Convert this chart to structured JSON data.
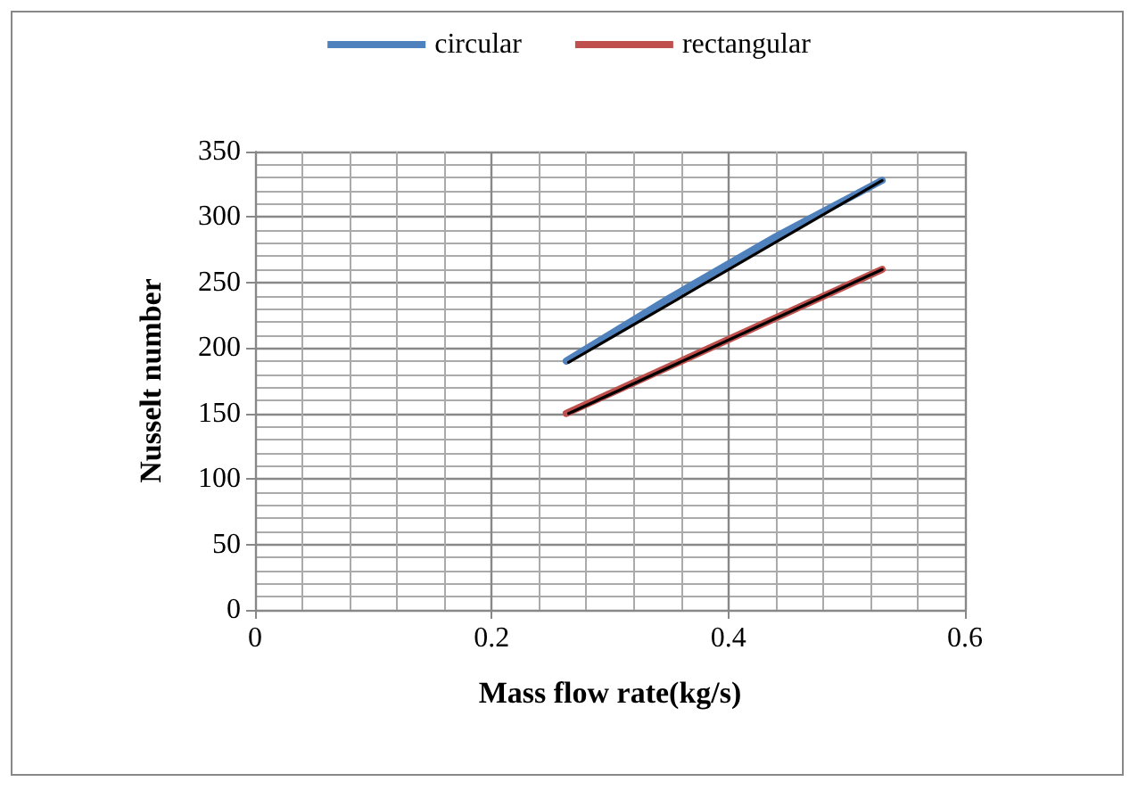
{
  "chart_data": {
    "type": "line",
    "xlabel": "Mass flow rate(kg/s)",
    "ylabel": "Nusselt number",
    "xlim": [
      0,
      0.6
    ],
    "xticks": [
      0,
      0.2,
      0.4,
      0.6
    ],
    "ylim": [
      0,
      350
    ],
    "yticks": [
      0,
      50,
      100,
      150,
      200,
      250,
      300,
      350
    ],
    "grid": true,
    "legend": "top",
    "marker": "none",
    "series": [
      {
        "name": "circular",
        "color": "#4f81bd",
        "x": [
          0.263,
          0.35,
          0.44,
          0.53
        ],
        "values": [
          190,
          238,
          285,
          328
        ]
      },
      {
        "name": "rectangular",
        "color": "#c0504d",
        "x": [
          0.263,
          0.53
        ],
        "values": [
          150,
          260
        ]
      },
      {
        "color": "#000000",
        "x": [
          0.265,
          0.53
        ],
        "values": [
          189,
          328
        ]
      },
      {
        "color": "#000000",
        "x": [
          0.265,
          0.53
        ],
        "values": [
          150,
          260
        ]
      }
    ]
  }
}
